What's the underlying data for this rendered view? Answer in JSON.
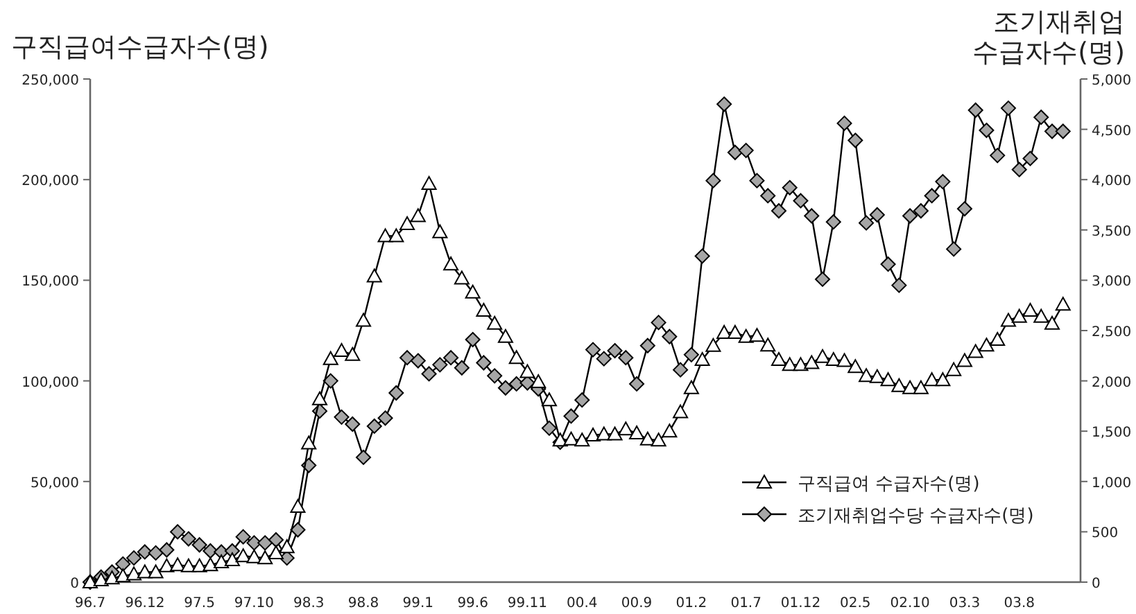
{
  "chart_data": {
    "type": "line",
    "ylabel": "구직급여수급자수(명)",
    "y2label": "조기재취업 수급자수(명)",
    "categories": [
      "96.7",
      null,
      null,
      null,
      null,
      "96.12",
      null,
      null,
      null,
      null,
      "97.5",
      null,
      null,
      null,
      null,
      "97.10",
      null,
      null,
      null,
      null,
      "98.3",
      null,
      null,
      null,
      null,
      "98.8",
      null,
      null,
      null,
      null,
      "99.1",
      null,
      null,
      null,
      null,
      "99.6",
      null,
      null,
      null,
      null,
      "99.11",
      null,
      null,
      null,
      null,
      "00.4",
      null,
      null,
      null,
      null,
      "00.9",
      null,
      null,
      null,
      null,
      "01.2",
      null,
      null,
      null,
      null,
      "01.7",
      null,
      null,
      null,
      null,
      "01.12",
      null,
      null,
      null,
      null,
      "02.5",
      null,
      null,
      null,
      null,
      "02.10",
      null,
      null,
      null,
      null,
      "03.3",
      null,
      null,
      null,
      null,
      "03.8",
      null,
      null,
      null,
      null
    ],
    "series": [
      {
        "name": "구직급여 수급자수(명)",
        "color": "#000000",
        "marker": "triangle",
        "values": [
          0,
          1000,
          2000,
          3000,
          4000,
          5000,
          5000,
          8000,
          8500,
          8000,
          8000,
          8500,
          10000,
          11000,
          13000,
          12500,
          12000,
          14500,
          17500,
          37500,
          69000,
          91000,
          111000,
          115000,
          113000,
          130000,
          152000,
          172000,
          172000,
          178000,
          182000,
          198000,
          174000,
          158000,
          151000,
          144000,
          135000,
          128500,
          122000,
          111500,
          104500,
          99500,
          90500,
          70500,
          71000,
          70500,
          73000,
          73500,
          73500,
          76000,
          74000,
          71000,
          70500,
          75000,
          84500,
          96500,
          110500,
          117500,
          124000,
          124000,
          122000,
          122500,
          117700,
          110500,
          108000,
          108000,
          109000,
          112000,
          110500,
          110000,
          107000,
          102500,
          102000,
          100500,
          97500,
          96500,
          96500,
          100500,
          100500,
          105500,
          110000,
          114500,
          117700,
          120500,
          130000,
          132000,
          135000,
          132000,
          128500,
          138000
        ]
      },
      {
        "name": "조기재취업수당 수급자수(명)",
        "color": "#000000",
        "marker": "diamond",
        "axis": "y2",
        "values": [
          0,
          50,
          100,
          180,
          240,
          300,
          290,
          320,
          500,
          430,
          370,
          310,
          300,
          310,
          450,
          390,
          390,
          420,
          240,
          520,
          1160,
          1700,
          2000,
          1640,
          1570,
          1240,
          1550,
          1630,
          1880,
          2230,
          2200,
          2070,
          2160,
          2230,
          2130,
          2410,
          2180,
          2050,
          1930,
          1970,
          1980,
          1920,
          1530,
          1390,
          1650,
          1810,
          2310,
          2220,
          2300,
          2230,
          1970,
          2350,
          2580,
          2440,
          2110,
          2260,
          3240,
          3990,
          4750,
          4270,
          4290,
          3990,
          3840,
          3690,
          3920,
          3790,
          3640,
          3010,
          3580,
          4560,
          4390,
          3570,
          3650,
          3160,
          2950,
          3640,
          3690,
          3840,
          3980,
          3310,
          3710,
          4690,
          4490,
          4240,
          4710,
          4100,
          4210,
          4620,
          4480,
          4480
        ]
      }
    ],
    "ylim": [
      0,
      250000
    ],
    "yticks": [
      {
        "value": 0,
        "label": "0"
      },
      {
        "value": 50000,
        "label": "50,000"
      },
      {
        "value": 100000,
        "label": "100,000"
      },
      {
        "value": 150000,
        "label": "150,000"
      },
      {
        "value": 200000,
        "label": "200,000"
      },
      {
        "value": 250000,
        "label": "250,000"
      }
    ],
    "y2lim": [
      0,
      5000
    ],
    "y2ticks": [
      {
        "value": 0,
        "label": "0"
      },
      {
        "value": 500,
        "label": "500"
      },
      {
        "value": 1000,
        "label": "1,000"
      },
      {
        "value": 1500,
        "label": "1,500"
      },
      {
        "value": 2000,
        "label": "2,000"
      },
      {
        "value": 2500,
        "label": "2,500"
      },
      {
        "value": 3000,
        "label": "3,000"
      },
      {
        "value": 3500,
        "label": "3,500"
      },
      {
        "value": 4000,
        "label": "4,000"
      },
      {
        "value": 4500,
        "label": "4,500"
      },
      {
        "value": 5000,
        "label": "5,000"
      }
    ],
    "grid": false,
    "legend": "bottom right"
  }
}
